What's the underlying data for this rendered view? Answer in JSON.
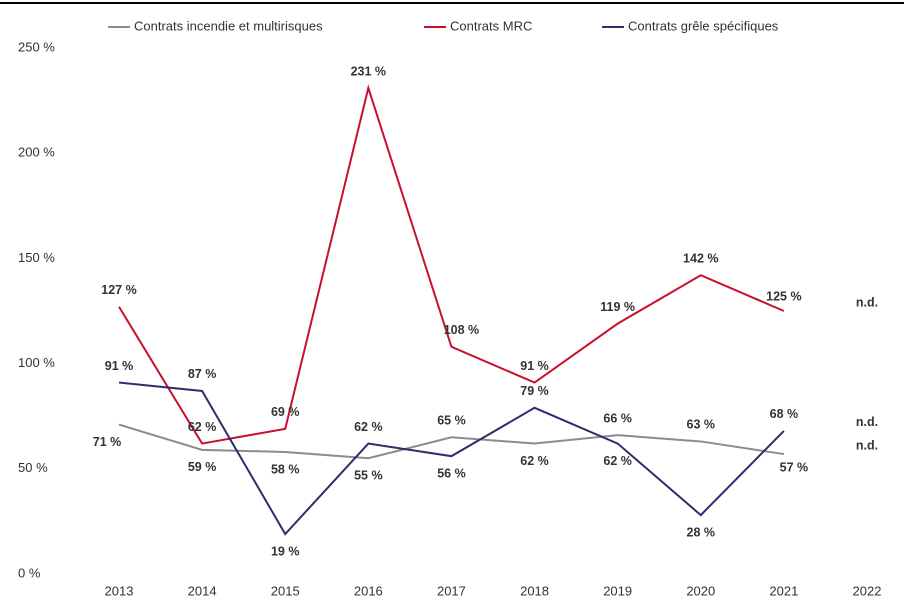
{
  "chart_data": {
    "type": "line",
    "categories": [
      "2013",
      "2014",
      "2015",
      "2016",
      "2017",
      "2018",
      "2019",
      "2020",
      "2021",
      "2022"
    ],
    "series": [
      {
        "name": "Contrats incendie et multirisques",
        "color": "#8c8c8c",
        "values": [
          71,
          59,
          58,
          55,
          65,
          62,
          66,
          63,
          57,
          null
        ],
        "value_labels": [
          "71 %",
          "59 %",
          "58 %",
          "55 %",
          "65 %",
          "62 %",
          "66 %",
          "63 %",
          "57 %",
          "n.d."
        ]
      },
      {
        "name": "Contrats MRC",
        "color": "#c8102e",
        "values": [
          127,
          62,
          69,
          231,
          108,
          91,
          119,
          142,
          125,
          null
        ],
        "value_labels": [
          "127 %",
          "62 %",
          "69 %",
          "231 %",
          "108 %",
          "91 %",
          "119 %",
          "142 %",
          "125 %",
          "n.d."
        ]
      },
      {
        "name": "Contrats grêle spécifiques",
        "color": "#2b2f6b",
        "values": [
          91,
          87,
          19,
          62,
          56,
          79,
          62,
          28,
          68,
          null
        ],
        "value_labels": [
          "91 %",
          "87 %",
          "19 %",
          "62 %",
          "56 %",
          "79 %",
          "62 %",
          "28 %",
          "68 %",
          "n.d."
        ]
      }
    ],
    "ylim": [
      0,
      260
    ],
    "yticks": [
      {
        "value": 0,
        "label": "0 %"
      },
      {
        "value": 50,
        "label": "50 %"
      },
      {
        "value": 100,
        "label": "100 %"
      },
      {
        "value": 150,
        "label": "150 %"
      },
      {
        "value": 200,
        "label": "200 %"
      },
      {
        "value": 250,
        "label": "250 %"
      }
    ],
    "grid": false,
    "legend": "top"
  }
}
